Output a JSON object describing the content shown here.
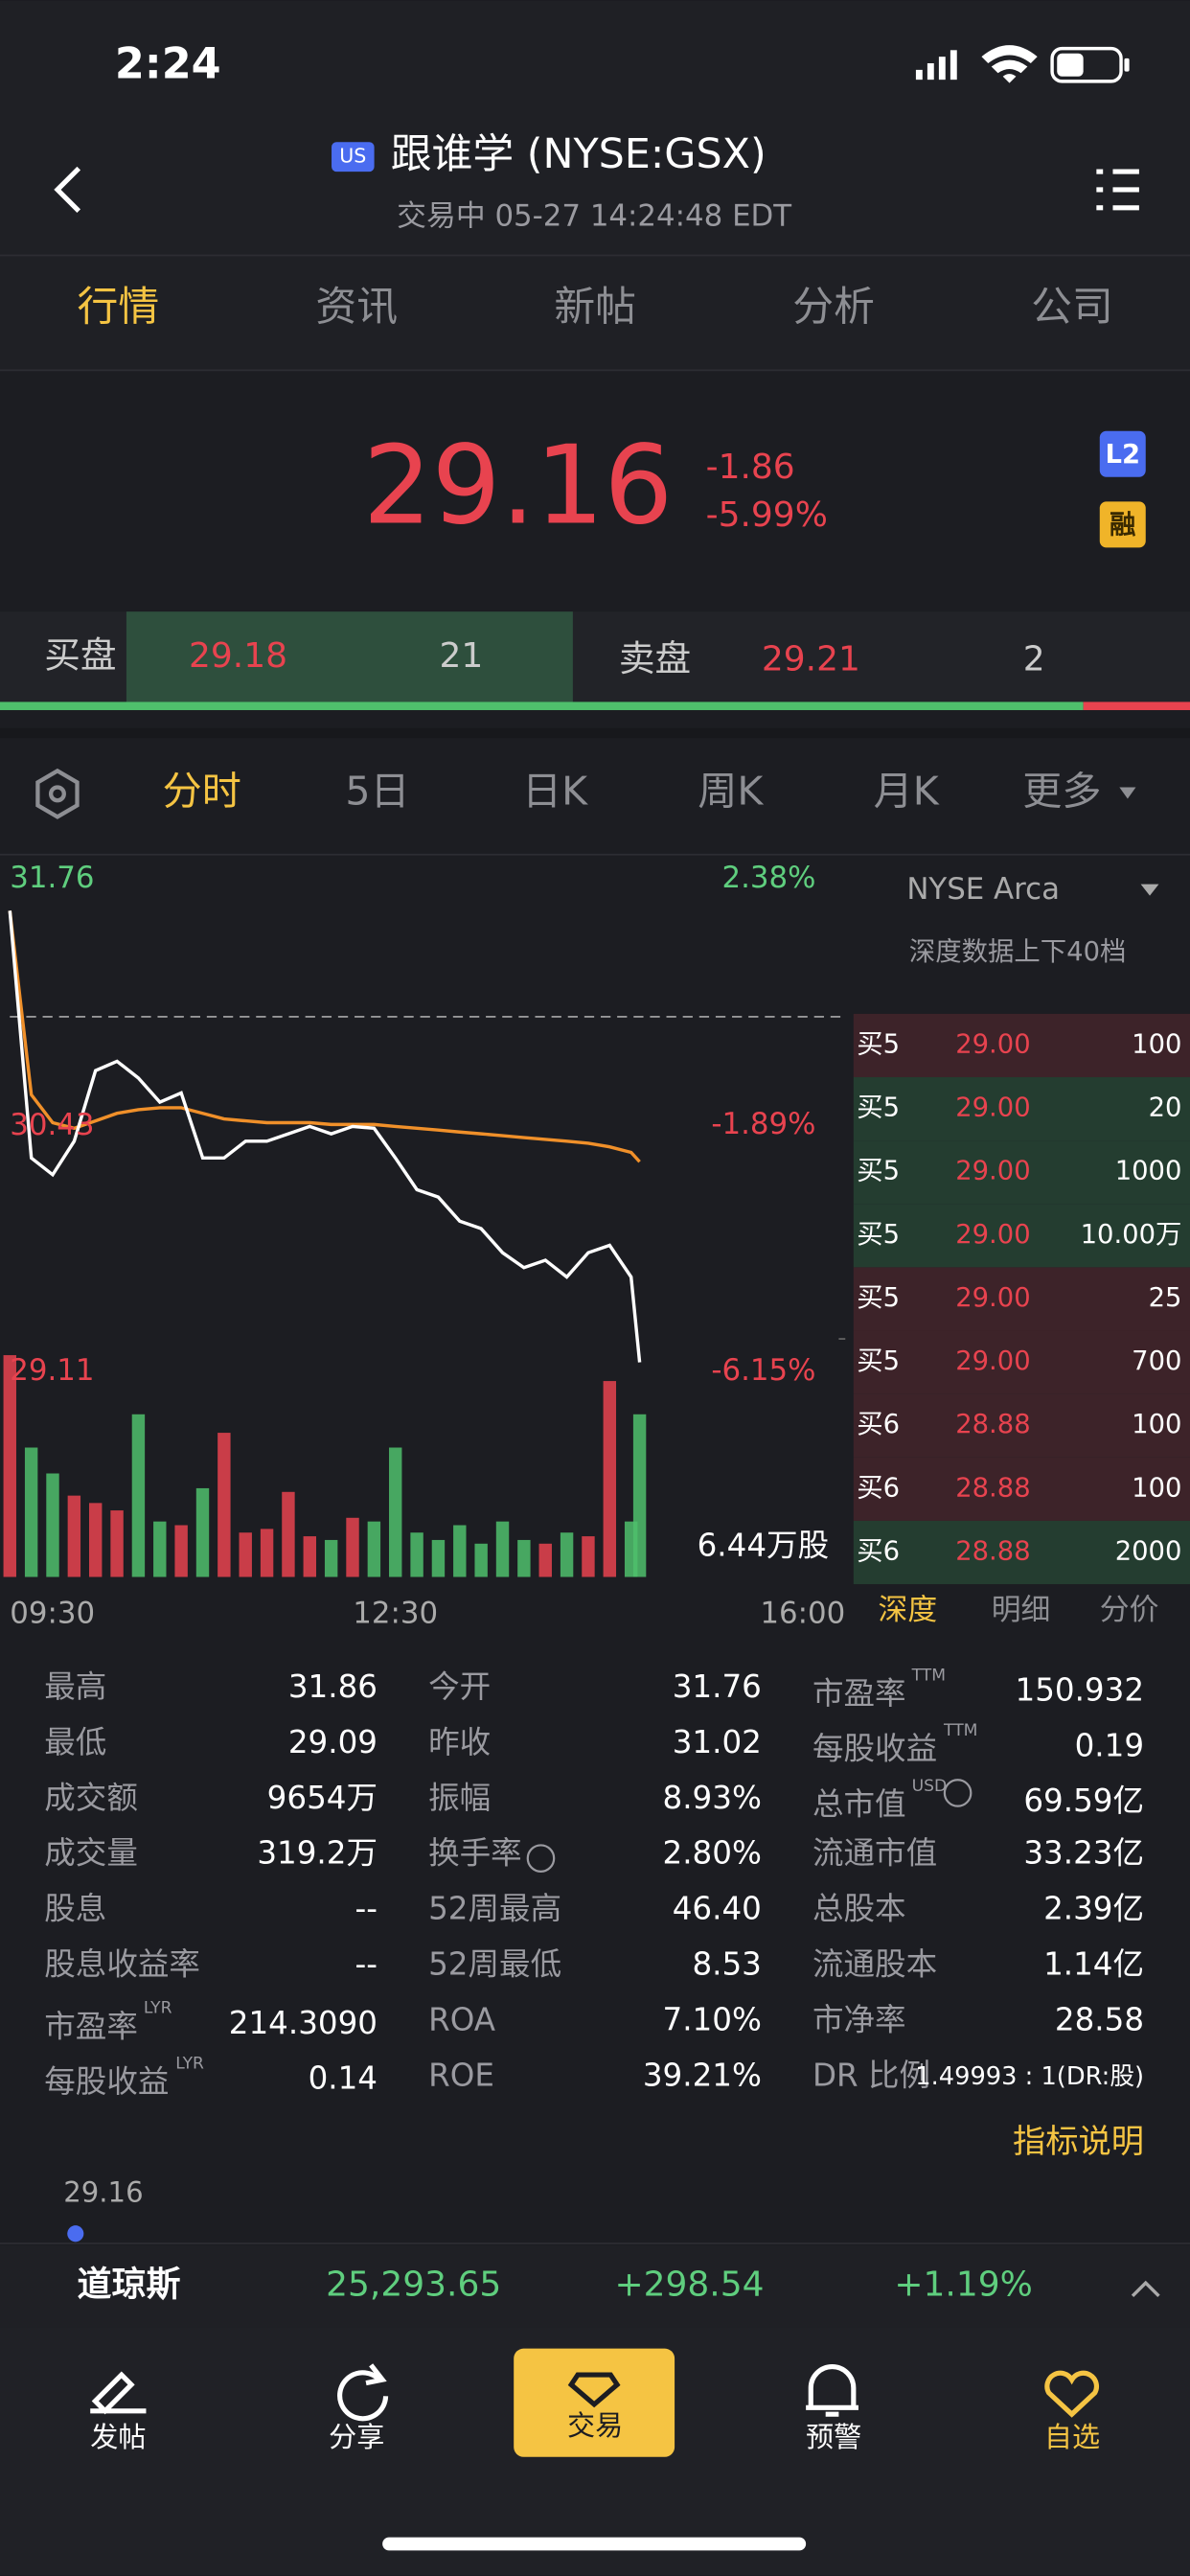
{
  "status_bar": {
    "time": "2:24"
  },
  "header": {
    "badge": "US",
    "title": "跟谁学 (NYSE:GSX)",
    "subtitle": "交易中 05-27 14:24:48 EDT"
  },
  "tabs": {
    "items": [
      "行情",
      "资讯",
      "新帖",
      "分析",
      "公司"
    ],
    "active": 0
  },
  "quote": {
    "price": "29.16",
    "change": "-1.86",
    "change_pct": "-5.99%",
    "badges": [
      "L2",
      "融"
    ]
  },
  "bid_ask": {
    "bid_label": "买盘",
    "bid_price": "29.18",
    "bid_size": "21",
    "ask_label": "卖盘",
    "ask_price": "29.21",
    "ask_size": "2"
  },
  "chart_tabs": {
    "items": [
      "分时",
      "5日",
      "日K",
      "周K",
      "月K",
      "更多"
    ],
    "active": 0
  },
  "chart_data": {
    "type": "line",
    "x": [
      "09:30",
      "09:40",
      "09:50",
      "10:00",
      "10:10",
      "10:20",
      "10:30",
      "10:40",
      "10:50",
      "11:00",
      "11:10",
      "11:20",
      "11:30",
      "11:40",
      "11:50",
      "12:00",
      "12:10",
      "12:20",
      "12:30",
      "12:40",
      "12:50",
      "13:00",
      "13:10",
      "13:20",
      "13:30",
      "13:40",
      "13:50",
      "14:00",
      "14:10",
      "14:20",
      "14:24"
    ],
    "series": [
      {
        "color": "#ffffff",
        "values": [
          31.59,
          30.26,
          30.17,
          30.35,
          30.73,
          30.78,
          30.69,
          30.56,
          30.61,
          30.26,
          30.26,
          30.35,
          30.35,
          30.39,
          30.43,
          30.39,
          30.43,
          30.42,
          30.26,
          30.09,
          30.05,
          29.92,
          29.88,
          29.75,
          29.67,
          29.71,
          29.62,
          29.75,
          29.79,
          29.62,
          29.16
        ]
      },
      {
        "color": "#f0902a",
        "values": [
          31.59,
          30.6,
          30.45,
          30.42,
          30.46,
          30.5,
          30.52,
          30.53,
          30.53,
          30.5,
          30.47,
          30.46,
          30.45,
          30.45,
          30.45,
          30.44,
          30.44,
          30.44,
          30.43,
          30.42,
          30.41,
          30.4,
          30.39,
          30.38,
          30.37,
          30.36,
          30.35,
          30.34,
          30.32,
          30.29,
          30.24
        ]
      }
    ],
    "ylim": [
      29.11,
      31.76
    ],
    "yticks": [
      31.76,
      30.43,
      29.11
    ],
    "y2lim": [
      -6.15,
      2.38
    ],
    "y2ticks": [
      {
        "value": 2.38,
        "label": "2.38%"
      },
      {
        "value": -1.89,
        "label": "-1.89%"
      },
      {
        "value": -6.15,
        "label": "-6.15%"
      }
    ],
    "xlim": [
      "09:30",
      "16:00"
    ],
    "xticks": [
      "09:30",
      "12:30",
      "16:00"
    ],
    "prev_close": 31.02,
    "volume": {
      "values": [
        6.0,
        3.5,
        2.8,
        2.2,
        2.0,
        1.8,
        4.4,
        1.5,
        1.4,
        2.4,
        3.9,
        1.2,
        1.3,
        2.3,
        1.1,
        1.0,
        1.6,
        1.5,
        3.5,
        1.2,
        1.0,
        1.4,
        0.9,
        1.5,
        1.0,
        0.9,
        1.2,
        1.1,
        5.3,
        1.5,
        4.4
      ],
      "ylim": [
        0,
        6.44
      ],
      "yticks": [
        {
          "value": 6.44,
          "label": "6.44万股"
        }
      ],
      "up_color": "#e8434f",
      "down_color": "#4fbf6c"
    }
  },
  "order_book": {
    "exchange": "NYSE Arca",
    "depth_note": "深度数据上下40档",
    "rows": [
      {
        "side": "买5",
        "price": "29.00",
        "size": "100",
        "bg": "#3d2329"
      },
      {
        "side": "买5",
        "price": "29.00",
        "size": "20",
        "bg": "#243d30"
      },
      {
        "side": "买5",
        "price": "29.00",
        "size": "1000",
        "bg": "#243d30"
      },
      {
        "side": "买5",
        "price": "29.00",
        "size": "10.00万",
        "bg": "#243d30"
      },
      {
        "side": "买5",
        "price": "29.00",
        "size": "25",
        "bg": "#3d2329"
      },
      {
        "side": "买5",
        "price": "29.00",
        "size": "700",
        "bg": "#3d2329"
      },
      {
        "side": "买6",
        "price": "28.88",
        "size": "100",
        "bg": "#3d2329"
      },
      {
        "side": "买6",
        "price": "28.88",
        "size": "100",
        "bg": "#3d2329"
      },
      {
        "side": "买6",
        "price": "28.88",
        "size": "2000",
        "bg": "#243d30"
      }
    ],
    "tabs": [
      "深度",
      "明细",
      "分价"
    ],
    "active": 0
  },
  "stats": {
    "columns": [
      [
        {
          "label": "最高",
          "value": "31.86"
        },
        {
          "label": "最低",
          "value": "29.09"
        },
        {
          "label": "成交额",
          "value": "9654万"
        },
        {
          "label": "成交量",
          "value": "319.2万"
        },
        {
          "label": "股息",
          "value": "--"
        },
        {
          "label": "股息收益率",
          "value": "--"
        },
        {
          "label": "市盈率",
          "sup": "LYR",
          "value": "214.3090"
        },
        {
          "label": "每股收益",
          "sup": "LYR",
          "value": "0.14"
        }
      ],
      [
        {
          "label": "今开",
          "value": "31.76"
        },
        {
          "label": "昨收",
          "value": "31.02"
        },
        {
          "label": "振幅",
          "value": "8.93%"
        },
        {
          "label": "换手率",
          "info": true,
          "value": "2.80%"
        },
        {
          "label": "52周最高",
          "value": "46.40"
        },
        {
          "label": "52周最低",
          "value": "8.53"
        },
        {
          "label": "ROA",
          "value": "7.10%"
        },
        {
          "label": "ROE",
          "value": "39.21%"
        }
      ],
      [
        {
          "label": "市盈率",
          "sup": "TTM",
          "value": "150.932"
        },
        {
          "label": "每股收益",
          "sup": "TTM",
          "value": "0.19"
        },
        {
          "label": "总市值",
          "sup": "USD",
          "info": true,
          "value": "69.59亿"
        },
        {
          "label": "流通市值",
          "value": "33.23亿"
        },
        {
          "label": "总股本",
          "value": "2.39亿"
        },
        {
          "label": "流通股本",
          "value": "1.14亿"
        },
        {
          "label": "市净率",
          "value": "28.58"
        },
        {
          "label": "DR 比例",
          "value": "1.49993 : 1(DR:股)",
          "small": true
        }
      ]
    ]
  },
  "link": "指标说明",
  "mini_price": "29.16",
  "index_bar": {
    "name": "道琼斯",
    "value": "25,293.65",
    "change": "+298.54",
    "change_pct": "+1.19%"
  },
  "bottom_nav": {
    "items": [
      "发帖",
      "分享",
      "交易",
      "预警",
      "自选"
    ],
    "highlight": 2,
    "active": 4
  }
}
